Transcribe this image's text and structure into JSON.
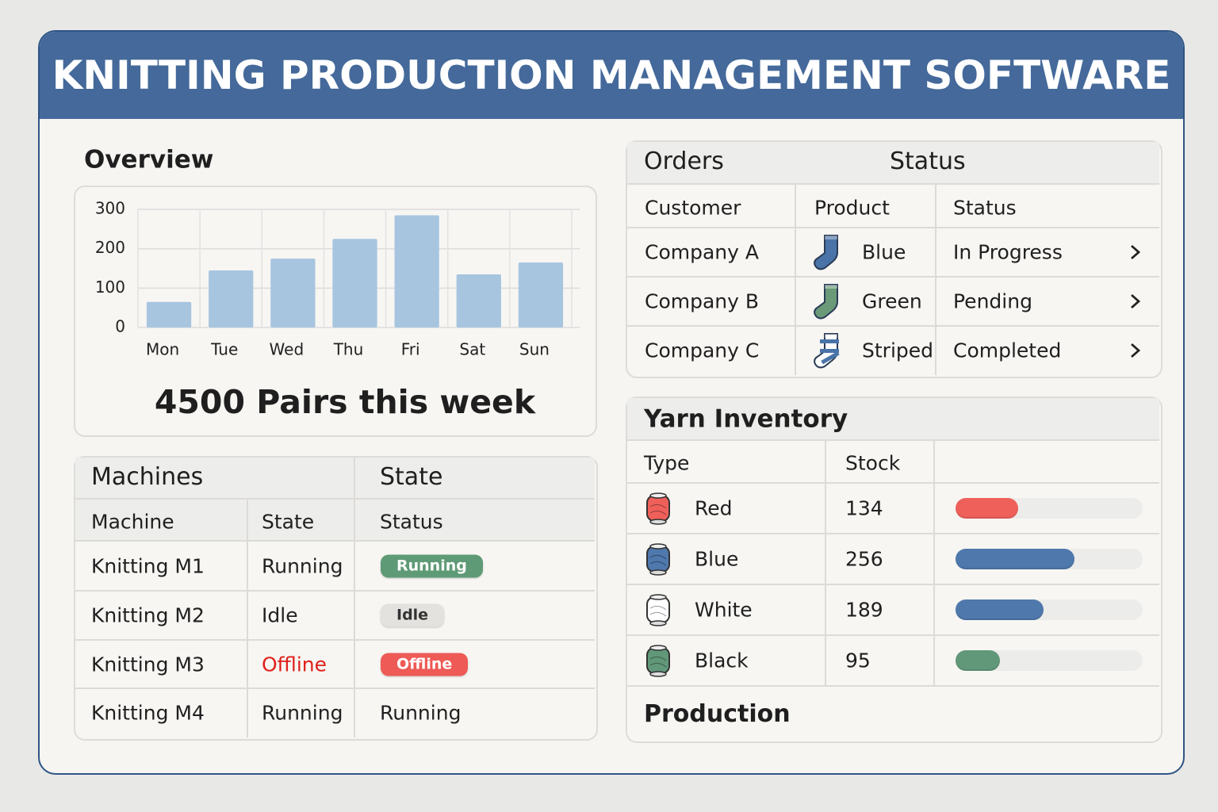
{
  "header": {
    "title": "KNITTING PRODUCTION MANAGEMENT SOFTWARE"
  },
  "overview": {
    "title": "Overview",
    "total": 4500,
    "total_label": "Pairs this week"
  },
  "chart_data": {
    "type": "bar",
    "categories": [
      "Mon",
      "Tue",
      "Wed",
      "Thu",
      "Fri",
      "Sat",
      "Sun"
    ],
    "values": [
      65,
      145,
      175,
      225,
      285,
      135,
      165
    ],
    "color": "#a7c5df",
    "ylim": [
      0,
      300
    ],
    "yticks": [
      0,
      100,
      200,
      300
    ],
    "grid": true
  },
  "machines": {
    "title": "Machines",
    "state_title": "State",
    "columns": [
      "Machine",
      "State",
      "Status"
    ],
    "rows": [
      {
        "machine": "Knitting M1",
        "state": "Running",
        "state_color": "#222222",
        "status": "Running",
        "badge": "#5e9a76"
      },
      {
        "machine": "Knitting M2",
        "state": "Idle",
        "state_color": "#222222",
        "status": "Idle",
        "badge": "#e3e2df"
      },
      {
        "machine": "Knitting M3",
        "state": "Offline",
        "state_color": "#e0201a",
        "status": "Offline",
        "badge": "#ee5a55"
      },
      {
        "machine": "Knitting M4",
        "state": "Running",
        "state_color": "#222222",
        "status": "Running",
        "badge": null
      }
    ]
  },
  "orders": {
    "title": "Orders",
    "status_title": "Status",
    "columns": [
      "Customer",
      "Product",
      "Status"
    ],
    "rows": [
      {
        "customer": "Company A",
        "product": "Blue",
        "status": "In Progress",
        "icon_color": "#4a74a8",
        "striped": false
      },
      {
        "customer": "Company B",
        "product": "Green",
        "status": "Pending",
        "icon_color": "#6a9a78",
        "striped": false
      },
      {
        "customer": "Company C",
        "product": "Striped",
        "status": "Completed",
        "icon_color": "#4a74a8",
        "striped": true
      }
    ]
  },
  "yarn": {
    "title": "Yarn Inventory",
    "columns": [
      "Type",
      "Stock"
    ],
    "rows": [
      {
        "type": "Red",
        "stock": 134,
        "color": "#f0605a"
      },
      {
        "type": "Blue",
        "stock": 256,
        "color": "#4f78ac"
      },
      {
        "type": "White",
        "stock": 189,
        "color": "#4f78ac"
      },
      {
        "type": "Black",
        "stock": 95,
        "color": "#62987a"
      }
    ]
  },
  "production": {
    "title": "Production"
  }
}
